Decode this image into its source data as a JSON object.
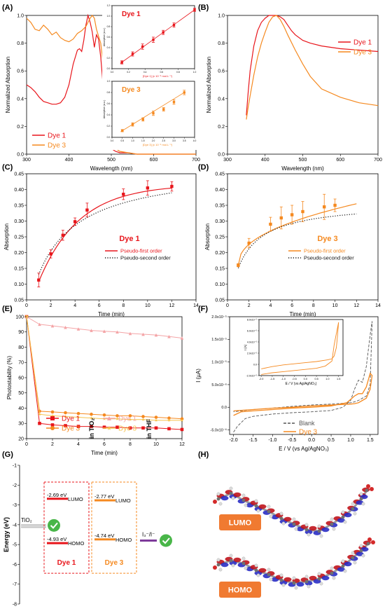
{
  "colors": {
    "dye1": "#e8151b",
    "dye3": "#f5891f",
    "dye1_light": "#f4a4a6",
    "dye3_light": "#f6c24e",
    "blank": "#555555",
    "fit_dotted": "#111111",
    "mol_red": "#c0141c",
    "mol_blue": "#2a2ec4",
    "lumo_box": "#f07a31",
    "check": "#49b649"
  },
  "panel_labels": {
    "A": "(A)",
    "B": "(B)",
    "C": "(C)",
    "D": "(D)",
    "E": "(E)",
    "F": "(F)",
    "G": "(G)",
    "H": "(H)"
  },
  "chart_data": [
    {
      "panel": "A",
      "type": "line",
      "xlabel": "Wavelength (nm)",
      "ylabel": "Normalized Absorption",
      "xlim": [
        300,
        700
      ],
      "ylim": [
        0,
        1.0
      ],
      "xticks": [
        "300",
        "400",
        "500",
        "600",
        "700"
      ],
      "yticks": [
        "0.0",
        "0.2",
        "0.4",
        "0.6",
        "0.8",
        "1.0"
      ],
      "legend": "bottom-left",
      "series": [
        {
          "name": "Dye 1",
          "color_key": "dye1",
          "x": [
            300,
            310,
            320,
            330,
            340,
            350,
            360,
            370,
            380,
            390,
            400,
            410,
            420,
            425,
            430,
            435,
            440,
            445,
            450,
            455,
            460,
            465,
            470,
            475,
            480,
            485,
            490,
            495,
            500,
            510,
            520,
            540,
            560,
            600,
            650,
            700
          ],
          "y": [
            0.5,
            0.48,
            0.45,
            0.41,
            0.38,
            0.37,
            0.36,
            0.36,
            0.37,
            0.41,
            0.5,
            0.65,
            0.75,
            0.76,
            0.74,
            0.82,
            0.93,
            1.0,
            0.95,
            0.88,
            0.77,
            0.86,
            0.83,
            0.7,
            0.52,
            0.27,
            0.14,
            0.07,
            0.04,
            0.02,
            0.01,
            0.01,
            0.0,
            0.0,
            0.0,
            0.0
          ]
        },
        {
          "name": "Dye 3",
          "color_key": "dye3",
          "x": [
            300,
            310,
            320,
            330,
            340,
            350,
            360,
            370,
            380,
            390,
            400,
            410,
            420,
            430,
            440,
            450,
            455,
            460,
            465,
            470,
            475,
            480,
            485,
            490,
            495,
            500,
            510,
            520,
            540,
            560,
            600,
            650,
            700
          ],
          "y": [
            0.98,
            0.95,
            0.9,
            0.89,
            0.93,
            0.9,
            0.86,
            0.88,
            0.84,
            0.82,
            0.81,
            0.83,
            0.87,
            0.89,
            0.92,
            0.98,
            1.0,
            0.98,
            0.9,
            0.85,
            0.8,
            0.67,
            0.47,
            0.28,
            0.16,
            0.09,
            0.04,
            0.02,
            0.01,
            0.0,
            0.0,
            0.0,
            0.0
          ]
        }
      ],
      "insets": [
        {
          "title": "Dye 1",
          "ylabel": "Absorption (a.u.)",
          "xlabel": "[Dye 1] (x 10⁻⁵ mol.L⁻¹)",
          "xlim": [
            0,
            1.0
          ],
          "ylim": [
            0,
            1.2
          ],
          "xticks": [
            "0.0",
            "0.2",
            "0.4",
            "0.6",
            "0.8",
            "1.0"
          ],
          "yticks": [
            "0.0",
            "0.2",
            "0.4",
            "0.6",
            "0.8",
            "1.0",
            "1.2"
          ],
          "x": [
            0.12,
            0.25,
            0.37,
            0.5,
            0.62,
            0.75,
            1.0
          ],
          "y": [
            0.12,
            0.28,
            0.42,
            0.55,
            0.69,
            0.83,
            1.12
          ],
          "err": [
            0.03,
            0.04,
            0.05,
            0.05,
            0.04,
            0.04,
            0.03
          ]
        },
        {
          "title": "Dye 3",
          "ylabel": "Absorption (a.u.)",
          "xlabel": "[Dye 3] (x 10⁻⁵ mol.L⁻¹)",
          "xlim": [
            0,
            4.0
          ],
          "ylim": [
            0,
            1.0
          ],
          "xticks": [
            "0.0",
            "0.5",
            "1.0",
            "1.5",
            "2.0",
            "2.5",
            "3.0",
            "3.5",
            "4.0"
          ],
          "yticks": [
            "0.0",
            "0.2",
            "0.4",
            "0.6",
            "0.8",
            "1.0"
          ],
          "x": [
            0.5,
            1.0,
            1.5,
            2.0,
            2.5,
            3.0,
            3.5
          ],
          "y": [
            0.12,
            0.23,
            0.32,
            0.43,
            0.5,
            0.63,
            0.8
          ],
          "err": [
            0.02,
            0.03,
            0.03,
            0.04,
            0.03,
            0.04,
            0.04
          ]
        }
      ]
    },
    {
      "panel": "B",
      "type": "line",
      "xlabel": "Wavelength (nm)",
      "ylabel": "Normalized Absorption",
      "xlim": [
        300,
        700
      ],
      "ylim": [
        0,
        1.0
      ],
      "xticks": [
        "300",
        "400",
        "500",
        "600",
        "700"
      ],
      "yticks": [
        "0.0",
        "0.2",
        "0.4",
        "0.6",
        "0.8",
        "1.0"
      ],
      "legend": "top-right",
      "series": [
        {
          "name": "Dye 1",
          "color_key": "dye1",
          "x": [
            350,
            355,
            360,
            370,
            380,
            390,
            400,
            410,
            420,
            430,
            440,
            450,
            460,
            470,
            480,
            500,
            520,
            550,
            600,
            650,
            700
          ],
          "y": [
            0.28,
            0.45,
            0.6,
            0.78,
            0.89,
            0.95,
            0.98,
            1.0,
            1.0,
            1.0,
            0.99,
            0.97,
            0.93,
            0.89,
            0.86,
            0.82,
            0.8,
            0.78,
            0.76,
            0.75,
            0.74
          ]
        },
        {
          "name": "Dye 3",
          "color_key": "dye3",
          "x": [
            350,
            355,
            360,
            370,
            380,
            390,
            400,
            410,
            420,
            430,
            440,
            450,
            460,
            480,
            500,
            520,
            550,
            600,
            650,
            700
          ],
          "y": [
            0.25,
            0.34,
            0.42,
            0.57,
            0.7,
            0.8,
            0.88,
            0.95,
            0.99,
            1.0,
            0.97,
            0.92,
            0.86,
            0.75,
            0.65,
            0.56,
            0.47,
            0.41,
            0.37,
            0.35
          ]
        }
      ]
    },
    {
      "panel": "C",
      "type": "scatter",
      "title": "Dye 1",
      "xlabel": "Time (min)",
      "ylabel": "Absorption",
      "xlim": [
        0,
        14
      ],
      "ylim": [
        0.05,
        0.45
      ],
      "xticks": [
        "0",
        "2",
        "4",
        "6",
        "8",
        "10",
        "12",
        "14"
      ],
      "yticks": [
        "0.05",
        "0.10",
        "0.15",
        "0.20",
        "0.25",
        "0.30",
        "0.35",
        "0.40",
        "0.45"
      ],
      "points": {
        "x": [
          1,
          2,
          3,
          4,
          5,
          8,
          10,
          12
        ],
        "y": [
          0.113,
          0.196,
          0.255,
          0.298,
          0.335,
          0.385,
          0.405,
          0.41
        ],
        "err": [
          0.022,
          0.013,
          0.016,
          0.012,
          0.022,
          0.017,
          0.023,
          0.015
        ]
      },
      "legend": "bottom-right",
      "series": [
        {
          "name": "Pseudo-first order",
          "style": "solid",
          "model": "first",
          "qe": 0.416,
          "k": 0.3
        },
        {
          "name": "Pseudo-second order",
          "style": "dotted",
          "model": "second",
          "qe": 0.475,
          "k": 0.8
        }
      ]
    },
    {
      "panel": "D",
      "type": "scatter",
      "title": "Dye 3",
      "xlabel": "Time (min)",
      "ylabel": "Absorption",
      "xlim": [
        0,
        14
      ],
      "ylim": [
        0.05,
        0.45
      ],
      "xticks": [
        "0",
        "2",
        "4",
        "6",
        "8",
        "10",
        "12",
        "14"
      ],
      "yticks": [
        "0.05",
        "0.10",
        "0.15",
        "0.20",
        "0.25",
        "0.30",
        "0.35",
        "0.40",
        "0.45"
      ],
      "points": {
        "x": [
          1,
          2,
          4,
          5,
          6,
          7,
          9,
          10
        ],
        "y": [
          0.16,
          0.23,
          0.29,
          0.31,
          0.32,
          0.33,
          0.345,
          0.35
        ],
        "err": [
          0.005,
          0.015,
          0.022,
          0.035,
          0.03,
          0.032,
          0.04,
          0.02
        ]
      },
      "legend": "bottom-right",
      "series": [
        {
          "name": "Pseudo-first order",
          "style": "solid",
          "model": "power"
        },
        {
          "name": "Pseudo-second order",
          "style": "dotted",
          "model": "second",
          "qe": 0.36,
          "k": 2.0
        }
      ]
    },
    {
      "panel": "E",
      "type": "line",
      "xlabel": "Time (min)",
      "ylabel": "Photostability (%)",
      "xlim": [
        0,
        12
      ],
      "ylim": [
        20,
        100
      ],
      "xticks": [
        "0",
        "2",
        "4",
        "6",
        "8",
        "10",
        "12"
      ],
      "yticks": [
        "20",
        "30",
        "40",
        "50",
        "60",
        "70",
        "80",
        "90",
        "100"
      ],
      "group_labels": [
        "in TiO₂",
        "in THF"
      ],
      "series": [
        {
          "name": "Dye 1",
          "group": "in TiO₂",
          "color_key": "dye1",
          "marker": "square",
          "x": [
            0,
            1,
            2,
            3,
            4,
            5,
            6,
            7,
            8,
            9,
            10,
            11,
            12
          ],
          "y": [
            100,
            30,
            29,
            28.5,
            28,
            28,
            27.5,
            27.5,
            27,
            27,
            27,
            26.5,
            26
          ]
        },
        {
          "name": "Dye 3",
          "group": "in TiO₂",
          "color_key": "dye3",
          "marker": "circle",
          "x": [
            0,
            1,
            2,
            3,
            4,
            5,
            6,
            7,
            8,
            9,
            10,
            11,
            12
          ],
          "y": [
            100,
            38,
            37.5,
            37,
            36.5,
            36,
            35.5,
            35,
            35,
            34.5,
            34,
            33.5,
            33
          ]
        },
        {
          "name": "Dye 1",
          "group": "in THF",
          "color_key": "dye1_light",
          "marker": "triangle",
          "x": [
            0,
            1,
            2,
            3,
            4,
            5,
            6,
            7,
            8,
            9,
            10,
            11,
            12
          ],
          "y": [
            100,
            95,
            94,
            93,
            92,
            91,
            90.5,
            90,
            89,
            88.5,
            88,
            87,
            86
          ]
        },
        {
          "name": "Dye 3",
          "group": "in THF",
          "color_key": "dye3_light",
          "marker": "star",
          "x": [
            0,
            1,
            2,
            3,
            4,
            5,
            6,
            7,
            8,
            9,
            10,
            11,
            12
          ],
          "y": [
            100,
            36,
            35,
            34.5,
            34,
            33.5,
            33,
            33,
            32.5,
            32.5,
            32,
            32,
            32
          ]
        }
      ]
    },
    {
      "panel": "F",
      "type": "line",
      "xlabel": "E / V (vs Ag/AgNO₃)",
      "ylabel": "I (µA)",
      "xlim": [
        -2.1,
        1.7
      ],
      "ylim": [
        -0.6,
        2.0
      ],
      "y_unit_note": "×10⁻⁵",
      "xticks": [
        "-2.0",
        "-1.5",
        "-1.0",
        "-0.5",
        "0.0",
        "0.5",
        "1.0",
        "1.5"
      ],
      "yticks": [
        "-5.0x10⁻⁶",
        "0.0",
        "5.0x10⁻⁶",
        "1.0x10⁻⁵",
        "1.5x10⁻⁵",
        "2.0x10⁻⁵"
      ],
      "legend": "bottom-center",
      "series": [
        {
          "name": "Blank",
          "style": "dashed",
          "color_key": "blank",
          "x": [
            -2.0,
            -1.9,
            -1.7,
            -1.5,
            -1.0,
            -0.5,
            0.0,
            0.5,
            0.8,
            1.0,
            1.1,
            1.2,
            1.3,
            1.4,
            1.5,
            1.55,
            1.5,
            1.4,
            1.3,
            1.2,
            1.1,
            1.0,
            0.5,
            0.0,
            -0.5,
            -1.0,
            -1.5,
            -1.8,
            -2.0
          ],
          "y": [
            -0.55,
            -0.42,
            -0.25,
            -0.2,
            -0.15,
            -0.12,
            -0.1,
            -0.07,
            0.0,
            0.15,
            0.4,
            0.6,
            0.55,
            0.9,
            1.6,
            1.9,
            0.5,
            0.25,
            0.2,
            0.15,
            0.12,
            0.1,
            0.07,
            0.05,
            0.02,
            -0.02,
            -0.05,
            -0.08,
            -0.1
          ]
        },
        {
          "name": "Dye 3",
          "style": "solid",
          "color_key": "dye3",
          "x": [
            -2.0,
            -1.8,
            -1.5,
            -1.0,
            -0.5,
            0.0,
            0.5,
            0.9,
            1.1,
            1.2,
            1.3,
            1.4,
            1.5,
            1.55,
            1.5,
            1.4,
            1.3,
            1.2,
            1.1,
            1.0,
            0.5,
            0.0,
            -0.5,
            -1.0,
            -1.5,
            -2.0
          ],
          "y": [
            -0.18,
            -0.1,
            -0.08,
            -0.05,
            -0.02,
            0.0,
            0.03,
            0.1,
            0.25,
            0.3,
            0.3,
            0.45,
            0.75,
            0.7,
            0.4,
            0.2,
            0.15,
            0.1,
            0.08,
            0.07,
            0.05,
            0.03,
            0.0,
            -0.02,
            -0.05,
            -0.08
          ]
        }
      ],
      "inset": {
        "xlabel": "E / V (vs Ag/AgNO₃)",
        "ylabel": "I (A)",
        "xlim": [
          -2.1,
          1.7
        ],
        "ylim": [
          -2.0,
          8.0
        ],
        "xticks": [
          "-2.0",
          "-1.5",
          "-1.0",
          "-0.5",
          "0.0",
          "0.5",
          "1.0",
          "1.5"
        ],
        "yticks": [
          "-2.0x10⁻⁶",
          "0.0",
          "2.0x10⁻⁶",
          "4.0x10⁻⁶",
          "6.0x10⁻⁶",
          "8.0x10⁻⁶"
        ],
        "x": [
          -2.0,
          -1.5,
          -1.0,
          -0.5,
          0.0,
          0.5,
          0.9,
          1.1,
          1.2,
          1.3,
          1.4,
          1.5,
          1.45,
          1.4,
          1.3,
          1.2,
          1.0,
          0.5,
          0.0,
          -0.5,
          -1.0,
          -1.5,
          -2.0
        ],
        "y": [
          -1.8,
          -1.5,
          -1.3,
          -1.1,
          -0.9,
          -0.7,
          -0.3,
          0.3,
          0.6,
          3.5,
          5.5,
          7.5,
          5.0,
          3.0,
          1.5,
          1.0,
          0.8,
          0.5,
          0.3,
          0.1,
          -0.1,
          -0.4,
          -0.8
        ]
      }
    },
    {
      "panel": "G",
      "type": "diagram",
      "ylabel": "Energy (eV)",
      "ylim": [
        -8,
        -1
      ],
      "yticks": [
        "-8",
        "-7",
        "-6",
        "-5",
        "-4",
        "-3",
        "-2",
        "-1"
      ],
      "tio2_label": "TiO₂",
      "tio2_level": -4.0,
      "redox_label": "I₃⁻/I⁻",
      "redox_level": -4.8,
      "dyes": [
        {
          "name": "Dye 1",
          "color_key": "dye1",
          "lumo_value": -2.69,
          "lumo_label": "-2.69 eV",
          "homo_value": -4.93,
          "homo_label": "-4.93 eV"
        },
        {
          "name": "Dye 3",
          "color_key": "dye3",
          "lumo_value": -2.77,
          "lumo_label": "-2.77 eV",
          "homo_value": -4.74,
          "homo_label": "-4.74 eV"
        }
      ],
      "lumo_word": "LUMO",
      "homo_word": "HOMO"
    }
  ],
  "panel_H": {
    "lumo_label": "LUMO",
    "homo_label": "HOMO"
  }
}
